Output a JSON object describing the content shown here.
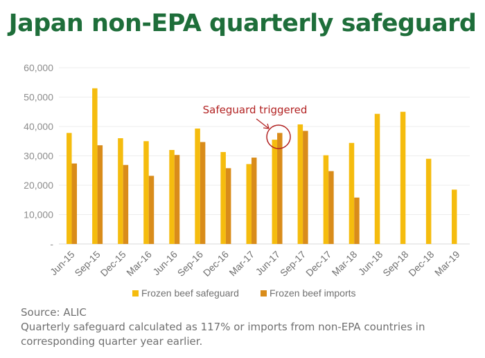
{
  "title": "Japan non-EPA quarterly safeguard",
  "source": "Source: ALIC",
  "note_line1": "Quarterly safeguard calculated as 117% or imports from non-EPA countries in",
  "note_line2": "corresponding quarter year earlier.",
  "colors": {
    "safeguard": "#f5bc0e",
    "imports": "#d98c1a",
    "annotation": "#b22222",
    "axis_text": "#8c8c8c",
    "grid": "#ededed",
    "title": "#1e6e3a"
  },
  "chart_data": {
    "type": "bar",
    "categories": [
      "Jun-15",
      "Sep-15",
      "Dec-15",
      "Mar-16",
      "Jun-16",
      "Sep-16",
      "Dec-16",
      "Mar-17",
      "Jun-17",
      "Sep-17",
      "Dec-17",
      "Mar-18",
      "Jun-18",
      "Sep-18",
      "Dec-18",
      "Mar-19"
    ],
    "series": [
      {
        "name": "Frozen beef safeguard",
        "values": [
          37800,
          53000,
          36000,
          35000,
          32000,
          39300,
          31300,
          27200,
          35500,
          40700,
          30200,
          34400,
          44300,
          45000,
          29000,
          18500
        ]
      },
      {
        "name": "Frozen beef imports",
        "values": [
          27400,
          33600,
          26900,
          23200,
          30300,
          34700,
          25800,
          29400,
          37800,
          38500,
          24800,
          15800,
          null,
          null,
          null,
          null
        ]
      }
    ],
    "ylim": [
      0,
      60000
    ],
    "yticks": [
      0,
      10000,
      20000,
      30000,
      40000,
      50000,
      60000
    ],
    "ytick_labels": [
      "-",
      "10,000",
      "20,000",
      "30,000",
      "40,000",
      "50,000",
      "60,000"
    ],
    "grid": true,
    "legend": "bottom",
    "annotation": {
      "text": "Safeguard triggered",
      "category": "Jun-17"
    }
  }
}
